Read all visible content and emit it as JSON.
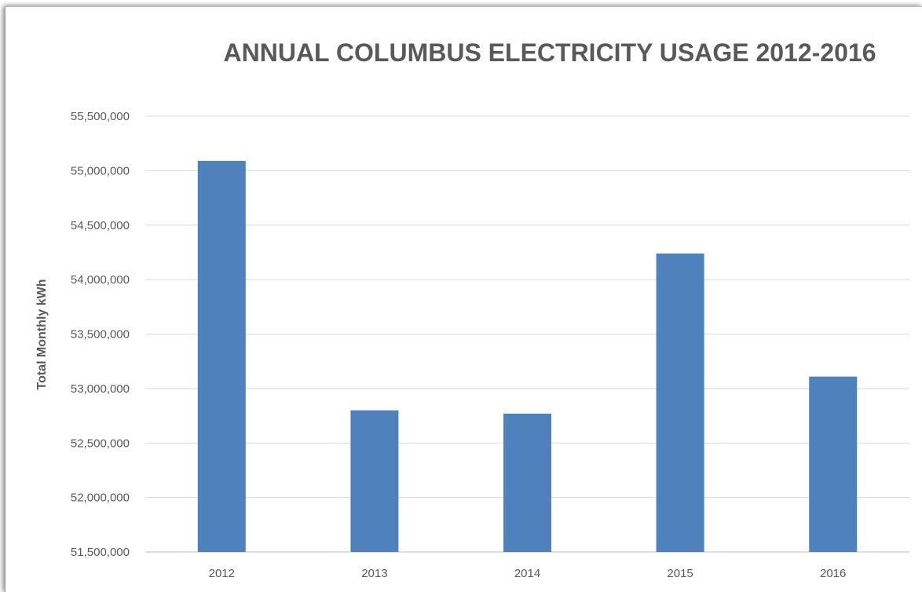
{
  "chart_data": {
    "type": "bar",
    "title": "ANNUAL COLUMBUS ELECTRICITY USAGE 2012-2016",
    "ylabel": "Total Monthly kWh",
    "xlabel": "",
    "categories": [
      "2012",
      "2013",
      "2014",
      "2015",
      "2016"
    ],
    "values": [
      55090000,
      52800000,
      52770000,
      54240000,
      53110000
    ],
    "ylim": [
      51500000,
      55500000
    ],
    "yticks": [
      51500000,
      52000000,
      52500000,
      53000000,
      53500000,
      54000000,
      54500000,
      55000000,
      55500000
    ],
    "ytick_labels": [
      "51,500,000",
      "52,000,000",
      "52,500,000",
      "53,000,000",
      "53,500,000",
      "54,000,000",
      "54,500,000",
      "55,000,000",
      "55,500,000"
    ],
    "grid": true,
    "legend": "none",
    "bar_color": "#4f81bd"
  }
}
